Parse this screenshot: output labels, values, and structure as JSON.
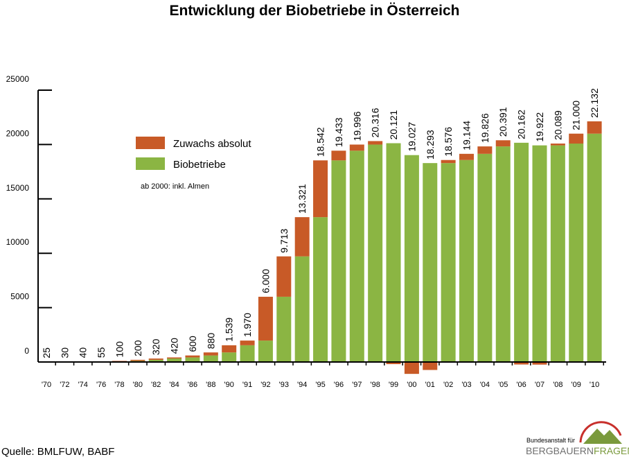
{
  "chart_data": {
    "type": "bar",
    "stacked": true,
    "title": "Entwicklung der Biobetriebe in Österreich",
    "note": "ab 2000: inkl. Almen",
    "source": "Quelle: BMLFUW, BABF",
    "logo": {
      "line1": "Bundesanstalt für",
      "line2a": "BERGBAUERN",
      "line2b": "FRAGEN"
    },
    "categories": [
      "'70",
      "'72",
      "'74",
      "'76",
      "'78",
      "'80",
      "'82",
      "'84",
      "'86",
      "'88",
      "'90",
      "'91",
      "'92",
      "'93",
      "'94",
      "'95",
      "'96",
      "'97",
      "'98",
      "'99",
      "'00",
      "'01",
      "'02",
      "'03",
      "'04",
      "'05",
      "'06",
      "'07",
      "'08",
      "'09",
      "'10"
    ],
    "series": [
      {
        "name": "Biobetriebe",
        "color": "#8bb543",
        "values": [
          25,
          25,
          30,
          40,
          55,
          100,
          200,
          320,
          420,
          600,
          880,
          1539,
          1970,
          6000,
          9713,
          13321,
          18542,
          19433,
          19996,
          20121,
          19027,
          18293,
          18293,
          18576,
          19144,
          19826,
          20162,
          19922,
          19922,
          20089,
          21000
        ]
      },
      {
        "name": "Zuwachs absolut",
        "color": "#c85a27",
        "values": [
          null,
          5,
          10,
          15,
          45,
          100,
          120,
          100,
          180,
          280,
          659,
          431,
          4030,
          3713,
          3608,
          5221,
          891,
          563,
          320,
          -195,
          -1094,
          -734,
          283,
          568,
          682,
          565,
          -229,
          -240,
          167,
          911,
          1132
        ]
      }
    ],
    "value_labels": [
      "25",
      "30",
      "40",
      "55",
      "100",
      "200",
      "320",
      "420",
      "600",
      "880",
      "1.539",
      "1.970",
      "6.000",
      "9.713",
      "13.321",
      "18.542",
      "19.433",
      "19.996",
      "20.316",
      "20.121",
      "19.027",
      "18.293",
      "18.576",
      "19.144",
      "19.826",
      "20.391",
      "20.162",
      "19.922",
      "20.089",
      "21.000",
      "22.132"
    ],
    "ylim": [
      0,
      25000
    ],
    "yticks": [
      0,
      5000,
      10000,
      15000,
      20000,
      25000
    ]
  }
}
